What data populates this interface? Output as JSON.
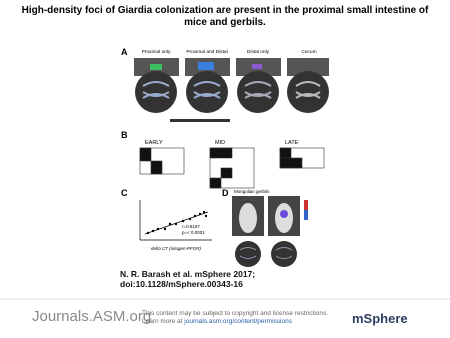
{
  "header": {
    "title": "High-density foci of Giardia colonization are present in the proximal small intestine of mice and gerbils."
  },
  "figure": {
    "panels": {
      "a": {
        "label": "A",
        "columns": [
          "Proximal only",
          "Proximal and Distal",
          "Distal only",
          "Cecum"
        ]
      },
      "b": {
        "label": "B",
        "groups": [
          "EARLY",
          "MID",
          "LATE"
        ]
      },
      "c": {
        "label": "C",
        "stats": [
          "r=0.8157",
          "p=< 0.0001"
        ],
        "x_label": "delta CT (nitogen-PFOR)"
      },
      "d": {
        "label": "D",
        "caption": "Mongolian gerbils"
      }
    }
  },
  "citation": {
    "line1": "N. R. Barash et al. mSphere 2017;",
    "line2": "doi:10.1128/mSphere.00343-16"
  },
  "footer": {
    "brand": "Journals.ASM.org",
    "notice": "This content may be subject to copyright and license restrictions.",
    "notice_prefix": "Learn more at",
    "link": "journals.asm.org/content/permissions",
    "journal": "mSphere"
  }
}
